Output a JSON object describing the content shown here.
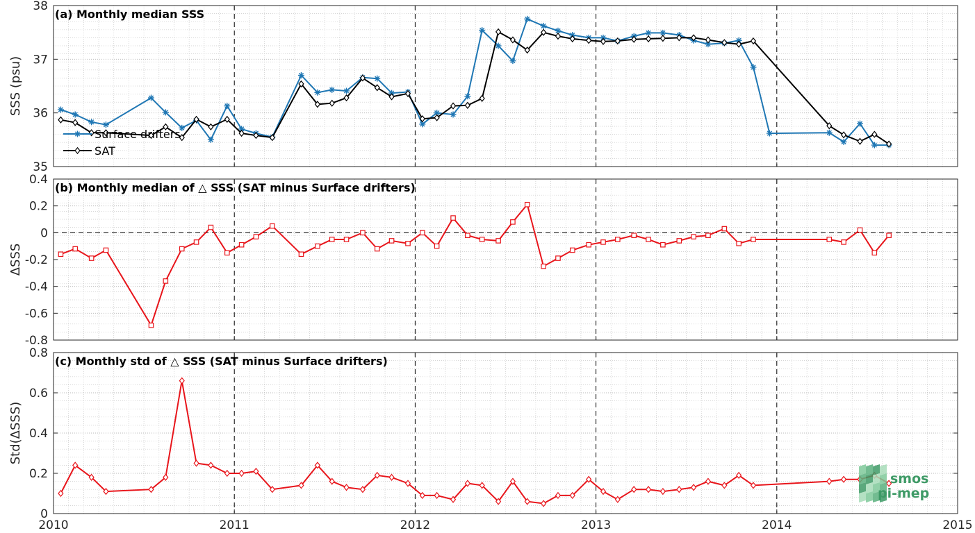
{
  "chart_data": [
    {
      "type": "line",
      "title": "(a) Monthly median SSS",
      "ylabel": "SSS (psu)",
      "xlim": [
        2010,
        2015
      ],
      "ylim": [
        35,
        38
      ],
      "yticks": [
        "35",
        "36",
        "37",
        "38"
      ],
      "grid": true,
      "legend_position": "bottom-left",
      "series": [
        {
          "name": "Surface drifters",
          "color": "#1f77b4",
          "marker": "asterisk",
          "x": [
            2010.04,
            2010.12,
            2010.21,
            2010.29,
            2010.54,
            2010.62,
            2010.71,
            2010.79,
            2010.87,
            2010.96,
            2011.04,
            2011.12,
            2011.21,
            2011.37,
            2011.46,
            2011.54,
            2011.62,
            2011.71,
            2011.79,
            2011.87,
            2011.96,
            2012.04,
            2012.12,
            2012.21,
            2012.29,
            2012.37,
            2012.46,
            2012.54,
            2012.62,
            2012.71,
            2012.79,
            2012.87,
            2012.96,
            2013.04,
            2013.12,
            2013.21,
            2013.29,
            2013.37,
            2013.46,
            2013.54,
            2013.62,
            2013.71,
            2013.79,
            2013.87,
            2013.96,
            2014.29,
            2014.37,
            2014.46,
            2014.54,
            2014.62
          ],
          "y": [
            36.06,
            35.97,
            35.83,
            35.78,
            36.28,
            36.01,
            35.72,
            35.86,
            35.5,
            36.13,
            35.7,
            35.62,
            35.55,
            36.7,
            36.38,
            36.43,
            36.41,
            36.66,
            36.64,
            36.37,
            36.39,
            35.79,
            36.0,
            35.97,
            36.31,
            37.54,
            37.25,
            36.97,
            37.75,
            37.62,
            37.53,
            37.45,
            37.4,
            37.4,
            37.34,
            37.43,
            37.49,
            37.49,
            37.45,
            37.35,
            37.28,
            37.3,
            37.35,
            36.85,
            35.62,
            35.63,
            35.46,
            35.8,
            35.4,
            35.4
          ]
        },
        {
          "name": "SAT",
          "color": "#000000",
          "marker": "diamond",
          "x": [
            2010.04,
            2010.12,
            2010.21,
            2010.29,
            2010.54,
            2010.62,
            2010.71,
            2010.79,
            2010.87,
            2010.96,
            2011.04,
            2011.12,
            2011.21,
            2011.37,
            2011.46,
            2011.54,
            2011.62,
            2011.71,
            2011.79,
            2011.87,
            2011.96,
            2012.04,
            2012.12,
            2012.21,
            2012.29,
            2012.37,
            2012.46,
            2012.54,
            2012.62,
            2012.71,
            2012.79,
            2012.87,
            2012.96,
            2013.04,
            2013.12,
            2013.21,
            2013.29,
            2013.37,
            2013.46,
            2013.54,
            2013.62,
            2013.71,
            2013.79,
            2013.87,
            2014.29,
            2014.37,
            2014.46,
            2014.54,
            2014.62
          ],
          "y": [
            35.87,
            35.82,
            35.63,
            35.63,
            35.58,
            35.74,
            35.54,
            35.88,
            35.74,
            35.88,
            35.62,
            35.58,
            35.54,
            36.54,
            36.16,
            36.18,
            36.28,
            36.65,
            36.47,
            36.3,
            36.36,
            35.89,
            35.91,
            36.13,
            36.14,
            36.27,
            37.51,
            37.36,
            37.17,
            37.5,
            37.43,
            37.38,
            37.35,
            37.33,
            37.34,
            37.37,
            37.38,
            37.39,
            37.4,
            37.4,
            37.36,
            37.31,
            37.28,
            37.34,
            35.76,
            35.59,
            35.47,
            35.6,
            35.42
          ]
        }
      ]
    },
    {
      "type": "line",
      "title": "(b) Monthly median of △ SSS (SAT minus Surface drifters)",
      "ylabel": "ΔSSS",
      "xlim": [
        2010,
        2015
      ],
      "ylim": [
        -0.8,
        0.4
      ],
      "yticks": [
        "-0.8",
        "-0.6",
        "-0.4",
        "-0.2",
        "0",
        "0.2",
        "0.4"
      ],
      "grid": true,
      "series": [
        {
          "name": "",
          "color": "#e8151b",
          "marker": "square",
          "x": [
            2010.04,
            2010.12,
            2010.21,
            2010.29,
            2010.54,
            2010.62,
            2010.71,
            2010.79,
            2010.87,
            2010.96,
            2011.04,
            2011.12,
            2011.21,
            2011.37,
            2011.46,
            2011.54,
            2011.62,
            2011.71,
            2011.79,
            2011.87,
            2011.96,
            2012.04,
            2012.12,
            2012.21,
            2012.29,
            2012.37,
            2012.46,
            2012.54,
            2012.62,
            2012.71,
            2012.79,
            2012.87,
            2012.96,
            2013.04,
            2013.12,
            2013.21,
            2013.29,
            2013.37,
            2013.46,
            2013.54,
            2013.62,
            2013.71,
            2013.79,
            2013.87,
            2014.29,
            2014.37,
            2014.46,
            2014.54,
            2014.62
          ],
          "y": [
            -0.16,
            -0.12,
            -0.19,
            -0.13,
            -0.69,
            -0.36,
            -0.12,
            -0.07,
            0.04,
            -0.15,
            -0.09,
            -0.03,
            0.05,
            -0.16,
            -0.1,
            -0.05,
            -0.05,
            0.0,
            -0.12,
            -0.06,
            -0.08,
            0.0,
            -0.1,
            0.11,
            -0.02,
            -0.05,
            -0.06,
            0.08,
            0.21,
            -0.25,
            -0.19,
            -0.13,
            -0.09,
            -0.07,
            -0.05,
            -0.02,
            -0.05,
            -0.09,
            -0.06,
            -0.03,
            -0.02,
            0.03,
            -0.08,
            -0.05,
            -0.05,
            -0.07,
            0.02,
            -0.15,
            -0.02
          ]
        }
      ]
    },
    {
      "type": "line",
      "title": "(c) Monthly std of △ SSS (SAT minus Surface drifters)",
      "ylabel": "Std(ΔSSS)",
      "xlim": [
        2010,
        2015
      ],
      "ylim": [
        0,
        0.8
      ],
      "yticks": [
        "0",
        "0.2",
        "0.4",
        "0.6",
        "0.8"
      ],
      "xticks": [
        "2010",
        "2011",
        "2012",
        "2013",
        "2014",
        "2015"
      ],
      "grid": true,
      "series": [
        {
          "name": "",
          "color": "#e8151b",
          "marker": "diamond",
          "x": [
            2010.04,
            2010.12,
            2010.21,
            2010.29,
            2010.54,
            2010.62,
            2010.71,
            2010.79,
            2010.87,
            2010.96,
            2011.04,
            2011.12,
            2011.21,
            2011.37,
            2011.46,
            2011.54,
            2011.62,
            2011.71,
            2011.79,
            2011.87,
            2011.96,
            2012.04,
            2012.12,
            2012.21,
            2012.29,
            2012.37,
            2012.46,
            2012.54,
            2012.62,
            2012.71,
            2012.79,
            2012.87,
            2012.96,
            2013.04,
            2013.12,
            2013.21,
            2013.29,
            2013.37,
            2013.46,
            2013.54,
            2013.62,
            2013.71,
            2013.79,
            2013.87,
            2014.29,
            2014.37,
            2014.46,
            2014.54,
            2014.62
          ],
          "y": [
            0.1,
            0.24,
            0.18,
            0.11,
            0.12,
            0.18,
            0.66,
            0.25,
            0.24,
            0.2,
            0.2,
            0.21,
            0.12,
            0.14,
            0.24,
            0.16,
            0.13,
            0.12,
            0.19,
            0.18,
            0.15,
            0.09,
            0.09,
            0.07,
            0.15,
            0.14,
            0.06,
            0.16,
            0.06,
            0.05,
            0.09,
            0.09,
            0.17,
            0.11,
            0.07,
            0.12,
            0.12,
            0.11,
            0.12,
            0.13,
            0.16,
            0.14,
            0.19,
            0.14,
            0.16,
            0.17,
            0.17,
            0.19,
            0.15
          ]
        }
      ]
    }
  ],
  "logo": {
    "line1": "smos",
    "line2": "pi-mep",
    "color": "#3e9a66"
  }
}
